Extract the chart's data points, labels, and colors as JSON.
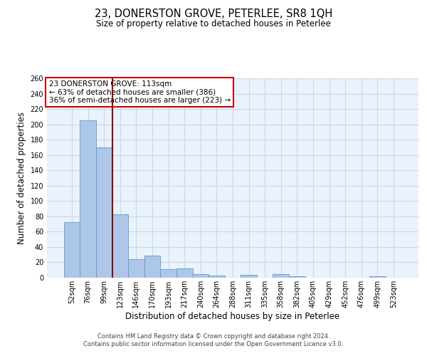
{
  "title": "23, DONERSTON GROVE, PETERLEE, SR8 1QH",
  "subtitle": "Size of property relative to detached houses in Peterlee",
  "xlabel": "Distribution of detached houses by size in Peterlee",
  "ylabel": "Number of detached properties",
  "footer1": "Contains HM Land Registry data © Crown copyright and database right 2024.",
  "footer2": "Contains public sector information licensed under the Open Government Licence v3.0.",
  "annotation_line1": "23 DONERSTON GROVE: 113sqm",
  "annotation_line2": "← 63% of detached houses are smaller (386)",
  "annotation_line3": "36% of semi-detached houses are larger (223) →",
  "bar_labels": [
    "52sqm",
    "76sqm",
    "99sqm",
    "123sqm",
    "146sqm",
    "170sqm",
    "193sqm",
    "217sqm",
    "240sqm",
    "264sqm",
    "288sqm",
    "311sqm",
    "335sqm",
    "358sqm",
    "382sqm",
    "405sqm",
    "429sqm",
    "452sqm",
    "476sqm",
    "499sqm",
    "523sqm"
  ],
  "bar_values": [
    72,
    205,
    170,
    83,
    24,
    29,
    11,
    12,
    5,
    3,
    0,
    4,
    0,
    5,
    2,
    0,
    0,
    0,
    0,
    2,
    0
  ],
  "bar_color": "#aec6e8",
  "bar_edge_color": "#5b9bd5",
  "grid_color": "#c8d8e8",
  "background_color": "#eaf2fb",
  "vline_color": "#8b0000",
  "annotation_box_color": "#ffffff",
  "annotation_box_edge": "#cc0000",
  "ylim": [
    0,
    260
  ],
  "yticks": [
    0,
    20,
    40,
    60,
    80,
    100,
    120,
    140,
    160,
    180,
    200,
    220,
    240,
    260
  ],
  "title_fontsize": 10.5,
  "subtitle_fontsize": 8.5,
  "ylabel_fontsize": 8.5,
  "xlabel_fontsize": 8.5,
  "tick_fontsize": 7,
  "annotation_fontsize": 7.5,
  "footer_fontsize": 6
}
